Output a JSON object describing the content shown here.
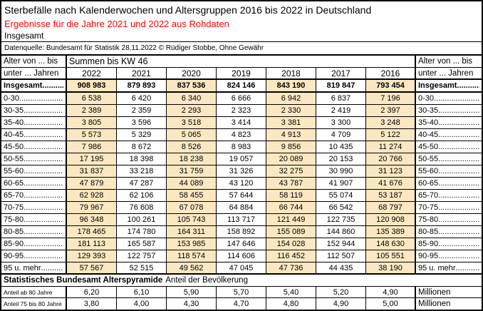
{
  "header": {
    "title": "Sterbefälle nach Kalenderwochen und Altersgruppen 2016 bis 2022 in Deutschland",
    "subtitle_red": "Ergebnisse für die Jahre 2021 und 2022 aus Rohdaten",
    "scope": "Insgesamt",
    "source": "Datenquelle: Bundesamt für Statistik 28.11.2022 © Rüdiger Stobbe, Ohne Gewähr"
  },
  "table": {
    "corner_top": "Alter von ... bis",
    "corner_bottom": "unter ... Jahren",
    "span_header": "Summen bis KW 46",
    "years": [
      "2022",
      "2021",
      "2020",
      "2019",
      "2018",
      "2017",
      "2016"
    ],
    "total_row": {
      "label": "Insgesamt",
      "values": [
        "908 983",
        "879 893",
        "837 536",
        "824 146",
        "843 190",
        "819 847",
        "793 454"
      ]
    },
    "age_rows": [
      {
        "label": "0-30",
        "values": [
          "6 538",
          "6 420",
          "6 340",
          "6 666",
          "6 942",
          "6 837",
          "7 196"
        ]
      },
      {
        "label": "30-35",
        "values": [
          "2 389",
          "2 359",
          "2 293",
          "2 323",
          "2 330",
          "2 419",
          "2 397"
        ]
      },
      {
        "label": "35-40",
        "values": [
          "3 805",
          "3 596",
          "3 518",
          "3 414",
          "3 381",
          "3 300",
          "3 248"
        ]
      },
      {
        "label": "40-45",
        "values": [
          "5 573",
          "5 329",
          "5 065",
          "4 823",
          "4 913",
          "4 709",
          "5 122"
        ]
      },
      {
        "label": "45-50",
        "values": [
          "7 986",
          "8 672",
          "8 526",
          "8 983",
          "9 856",
          "10 435",
          "11 274"
        ]
      },
      {
        "label": "50-55",
        "values": [
          "17 195",
          "18 398",
          "18 238",
          "19 057",
          "20 089",
          "20 153",
          "20 766"
        ]
      },
      {
        "label": "55-60",
        "values": [
          "31 837",
          "33 218",
          "31 759",
          "31 326",
          "32 275",
          "30 990",
          "31 123"
        ]
      },
      {
        "label": "60-65",
        "values": [
          "47 879",
          "47 287",
          "44 089",
          "43 120",
          "43 787",
          "41 907",
          "41 676"
        ]
      },
      {
        "label": "65-70",
        "values": [
          "62 928",
          "62 106",
          "58 455",
          "57 644",
          "58 119",
          "55 074",
          "53 187"
        ]
      },
      {
        "label": "70-75",
        "values": [
          "79 967",
          "76 608",
          "67 078",
          "64 884",
          "66 744",
          "66 542",
          "68 797"
        ]
      },
      {
        "label": "75-80",
        "values": [
          "96 348",
          "100 261",
          "105 743",
          "113 717",
          "121 449",
          "122 735",
          "120 908"
        ]
      },
      {
        "label": "80-85",
        "values": [
          "178 465",
          "174 780",
          "164 311",
          "158 892",
          "155 089",
          "144 860",
          "135 389"
        ]
      },
      {
        "label": "85-90",
        "values": [
          "181 113",
          "165 587",
          "153 985",
          "147 646",
          "154 028",
          "152 944",
          "148 630"
        ]
      },
      {
        "label": "90-95",
        "values": [
          "129 393",
          "122 757",
          "118 574",
          "114 606",
          "116 452",
          "112 507",
          "105 551"
        ]
      },
      {
        "label": "95 u. mehr",
        "values": [
          "57 567",
          "52 515",
          "49 562",
          "47 045",
          "47 736",
          "44 435",
          "38 190"
        ]
      }
    ],
    "section_header": {
      "bold": "Statistisches Bundesamt Alterspyramide",
      "regular": "Anteil der Bevölkerung"
    },
    "share_rows": [
      {
        "label": "Anteil ab 80 Jahre",
        "values": [
          "6,20",
          "6,10",
          "5,90",
          "5,70",
          "5,40",
          "5,20",
          "4,90"
        ],
        "unit": "Millionen"
      },
      {
        "label": "Anteil 75 bis 80 Jahre",
        "values": [
          "3,80",
          "4,00",
          "4,30",
          "4,70",
          "4,80",
          "4,90",
          "5,00"
        ],
        "unit": "Millionen"
      }
    ]
  },
  "colors": {
    "accent_red": "#ff0000",
    "column_stripe": "#fbe8c2",
    "border": "#000000"
  }
}
